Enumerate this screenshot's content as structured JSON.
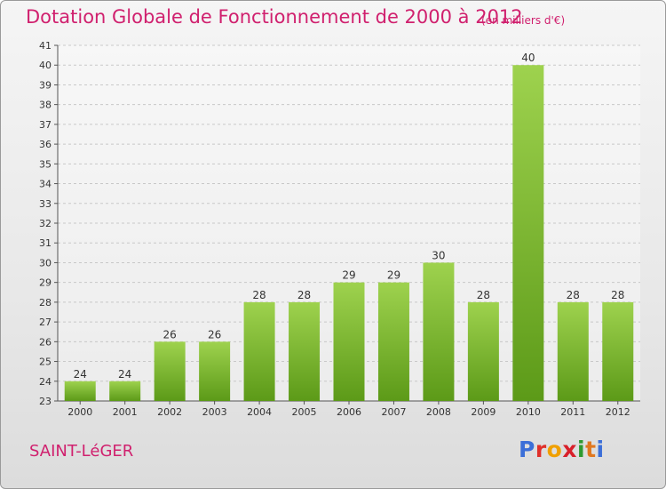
{
  "header": {
    "title": "Dotation Globale de Fonctionnement de 2000 à 2012",
    "subtitle": "(en milliers d'€)"
  },
  "footer": {
    "commune": "SAINT-LéGER",
    "logo_text": "Proxiti"
  },
  "colors": {
    "accent": "#d0206e",
    "bar_top": "#9ed24e",
    "bar_bottom": "#5c9a18",
    "grid": "#c8c8c8"
  },
  "chart_data": {
    "type": "bar",
    "title": "Dotation Globale de Fonctionnement de 2000 à 2012",
    "subtitle": "(en milliers d'€)",
    "xlabel": "",
    "ylabel": "",
    "categories": [
      "2000",
      "2001",
      "2002",
      "2003",
      "2004",
      "2005",
      "2006",
      "2007",
      "2008",
      "2009",
      "2010",
      "2011",
      "2012"
    ],
    "values": [
      24,
      24,
      26,
      26,
      28,
      28,
      29,
      29,
      30,
      28,
      40,
      28,
      28
    ],
    "ylim": [
      23,
      41
    ],
    "yticks": [
      23,
      24,
      25,
      26,
      27,
      28,
      29,
      30,
      31,
      32,
      33,
      34,
      35,
      36,
      37,
      38,
      39,
      40,
      41
    ],
    "grid": "horizontal dashed",
    "data_labels": true
  }
}
